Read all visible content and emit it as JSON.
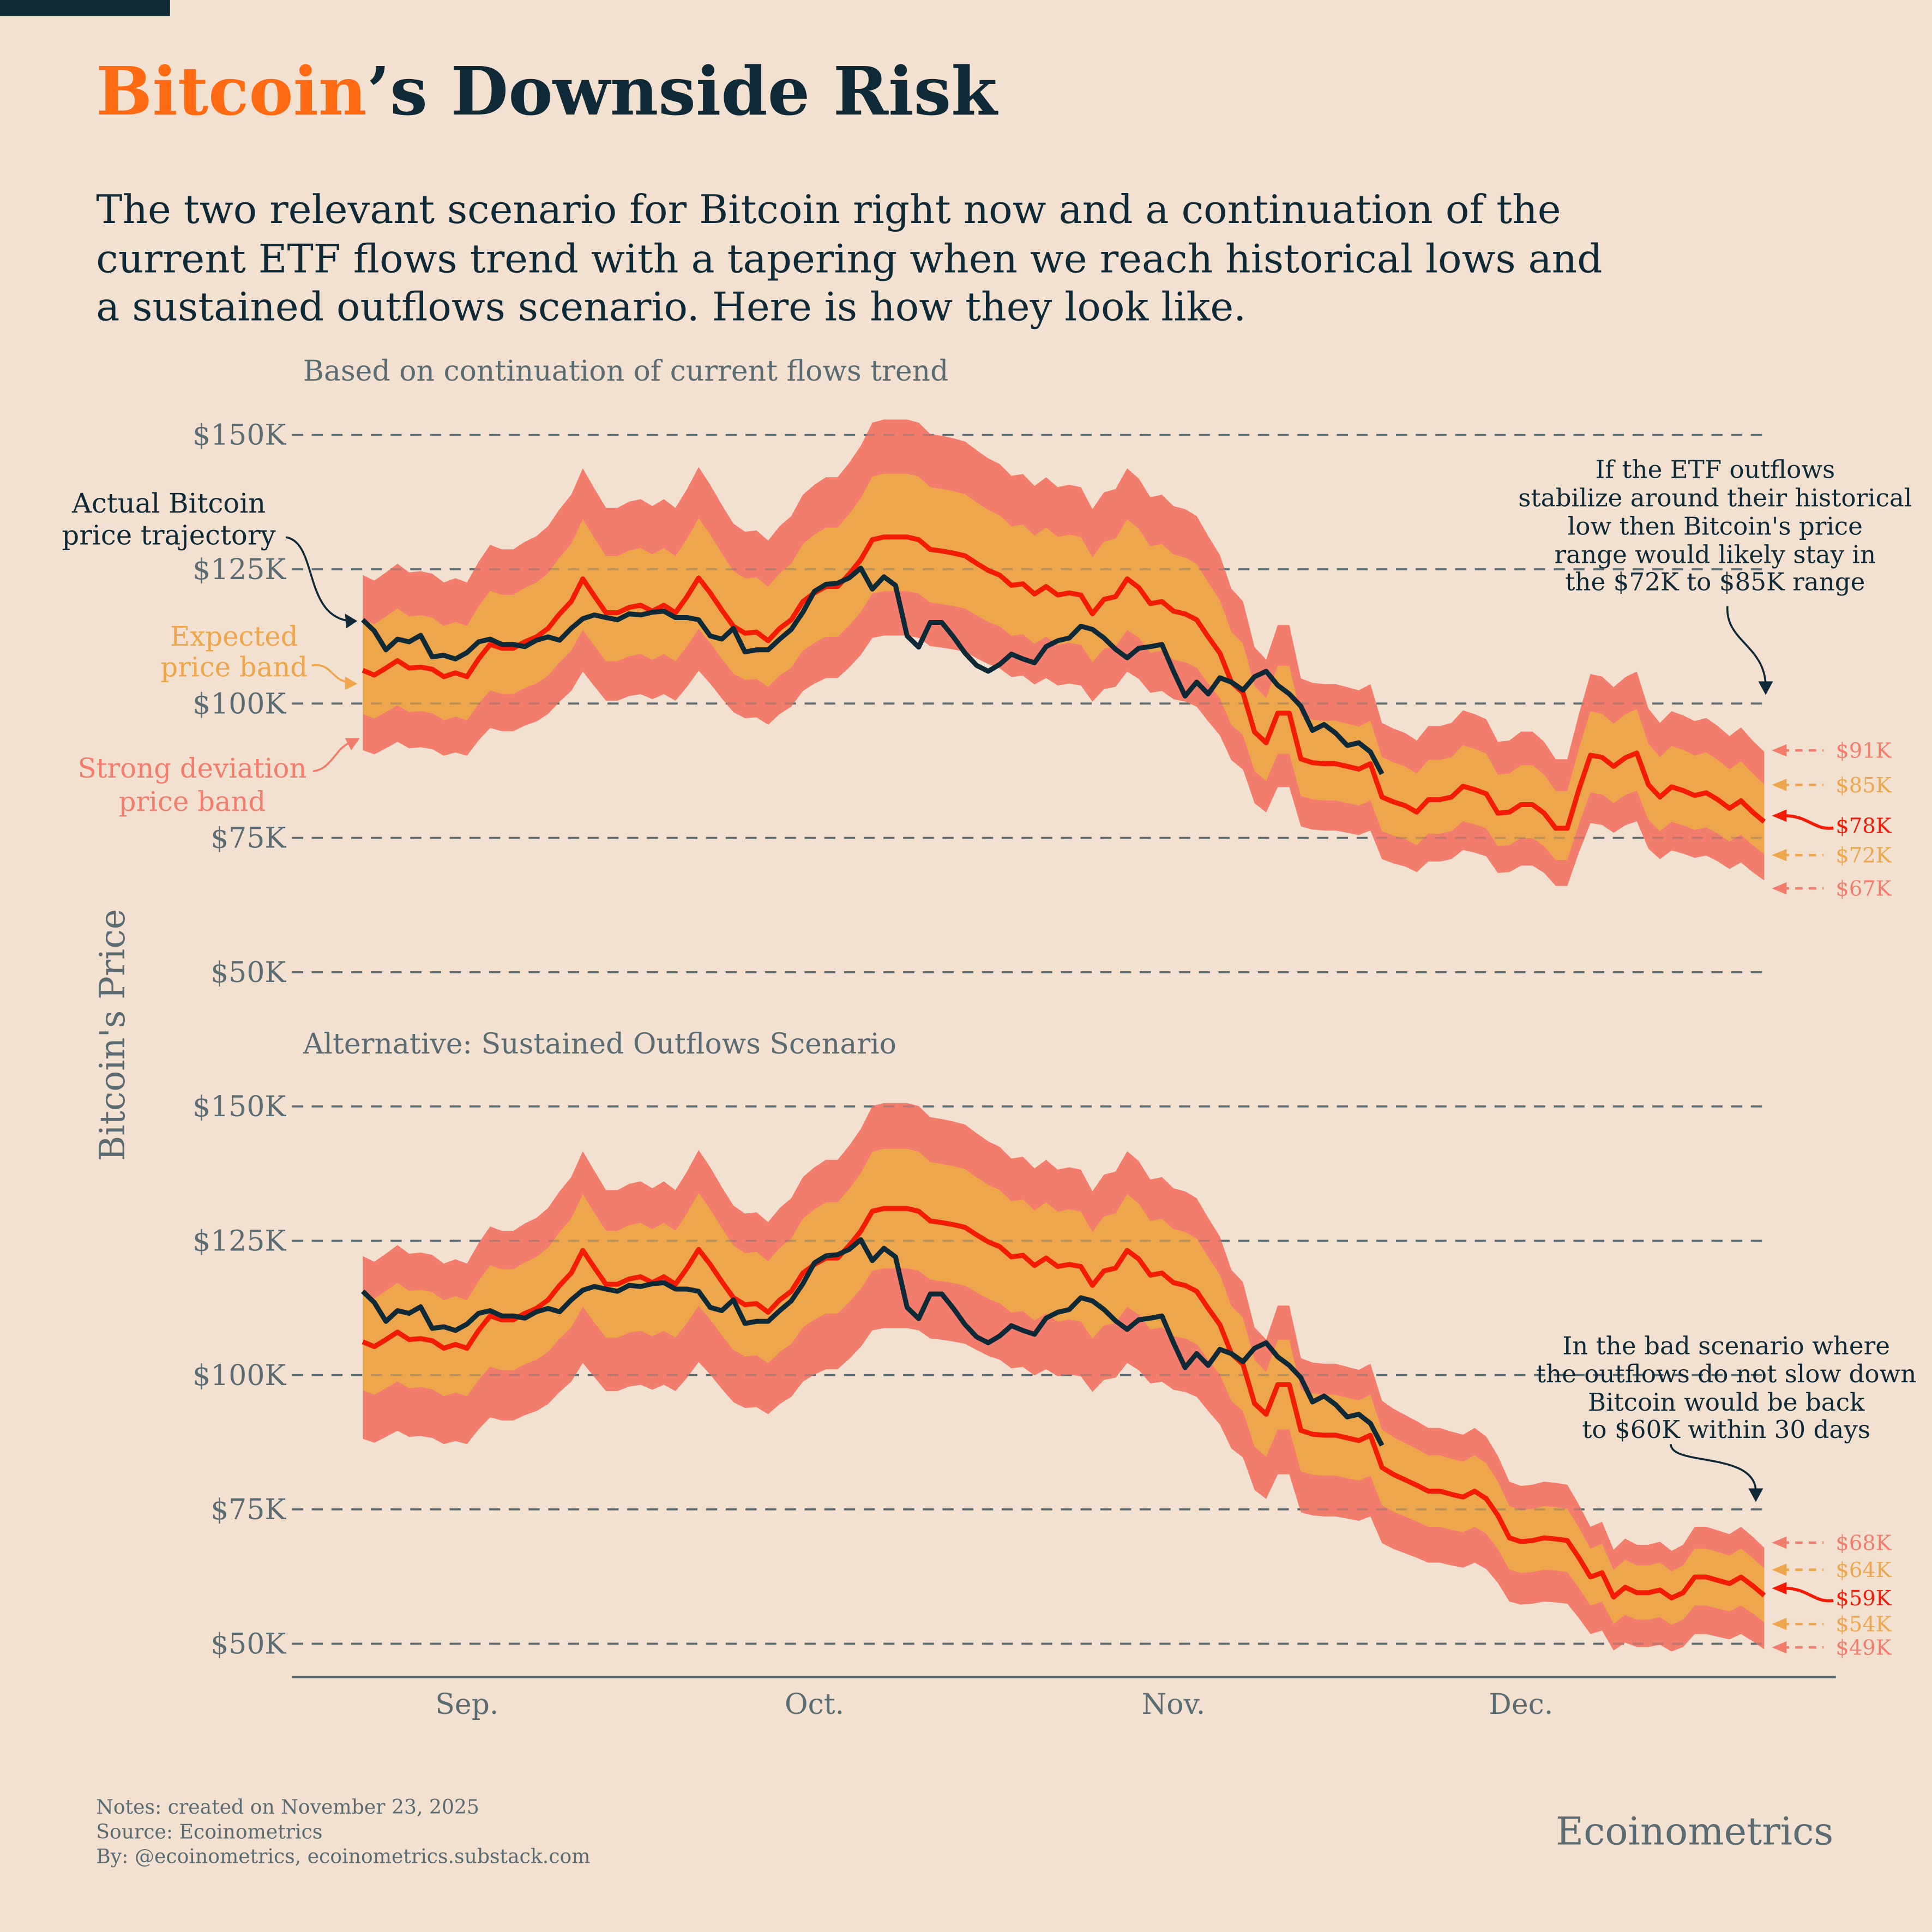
{
  "title": {
    "highlight": "Bitcoin",
    "rest": "’s Downside Risk"
  },
  "subtitle": [
    "The two relevant scenario for Bitcoin right now and a continuation of the",
    "current ETF flows trend with a tapering when we reach historical lows and",
    "a sustained outflows scenario. Here is how they look like."
  ],
  "colors": {
    "background": "#f2e0d0",
    "actual": "#0f2a36",
    "expected_line": "#f21c06",
    "expected_band": "#eea64c",
    "strong_band": "#f27d6d",
    "title_accent": "#ff6a13"
  },
  "y_axis_label": "Bitcoin's Price",
  "x_ticks": [
    "Sep.",
    "Oct.",
    "Nov.",
    "Dec."
  ],
  "annotations": {
    "actual": [
      "Actual Bitcoin",
      "price trajectory"
    ],
    "expected": [
      "Expected",
      "price band"
    ],
    "strong": [
      "Strong deviation",
      "price band"
    ],
    "top_note": [
      "If the ETF outflows",
      "stabilize around their historical",
      "low then Bitcoin's price",
      "range would likely stay in",
      "the $72K to $85K range"
    ],
    "bottom_note": [
      "In the bad scenario where",
      "the outflows do not slow down",
      "Bitcoin would be back",
      "to $60K within 30 days"
    ]
  },
  "footer": {
    "notes": "Notes: created on November 23, 2025",
    "source": "Source: Ecoinometrics",
    "by": "By: @ecoinometrics, ecoinometrics.substack.com",
    "brand": "Ecoinometrics"
  },
  "chart_data": [
    {
      "type": "area",
      "title": "Based on continuation of current flows trend",
      "ylabel": "Bitcoin's Price",
      "ylim": [
        50000,
        150000
      ],
      "y_ticks": [
        "$150K",
        "$125K",
        "$100K",
        "$75K",
        "$50K"
      ],
      "y_tick_values": [
        150,
        125,
        100,
        75,
        50
      ],
      "grid": "horizontal dashed",
      "end_labels": {
        "strong_high": "$91K",
        "expected_high": "$85K",
        "expected": "$78K",
        "expected_low": "$72K",
        "strong_low": "$67K"
      },
      "series": {
        "expected_center_k": [
          106.2,
          105.3,
          106.6,
          108,
          106.6,
          106.8,
          106.4,
          105,
          105.7,
          105,
          108.3,
          111,
          110.3,
          110.3,
          111.5,
          112.4,
          114,
          116.7,
          119,
          123.2,
          120,
          116.9,
          116.9,
          117.9,
          118.3,
          117.2,
          118.3,
          116.9,
          119.9,
          123.4,
          120.6,
          117.4,
          114.4,
          113.1,
          113.3,
          111.7,
          114,
          115.6,
          119,
          120.6,
          121.8,
          121.8,
          124.1,
          126.8,
          130.5,
          131,
          131,
          131,
          130.5,
          128.7,
          128.4,
          128,
          127.5,
          126.1,
          124.8,
          123.9,
          122,
          122.3,
          120.4,
          121.8,
          120.2,
          120.6,
          120.2,
          116.7,
          119.4,
          119.9,
          123.2,
          121.6,
          118.6,
          119,
          117.2,
          116.7,
          115.6,
          112.4,
          109.4,
          104,
          102,
          94.7,
          92.7,
          98.2,
          98.2,
          89.7,
          89,
          88.8,
          88.8,
          88.3,
          87.8,
          88.8,
          82.6,
          81.7,
          81,
          79.8,
          82.1,
          82.1,
          82.6,
          84.6,
          84,
          83.2,
          79.6,
          79.8,
          81.2,
          81.2,
          79.6,
          76.8,
          76.8,
          84,
          90.4,
          90,
          88.3,
          89.9,
          90.8,
          84.9,
          82.6,
          84.5,
          83.8,
          82.9,
          83.4,
          82.1,
          80.5,
          81.9,
          79.8,
          78
        ]
      }
    },
    {
      "type": "area",
      "title": "Alternative: Sustained Outflows Scenario",
      "ylabel": "Bitcoin's Price",
      "ylim": [
        50000,
        150000
      ],
      "y_ticks": [
        "$150K",
        "$125K",
        "$100K",
        "$75K",
        "$50K"
      ],
      "y_tick_values": [
        150,
        125,
        100,
        75,
        50
      ],
      "grid": "horizontal dashed",
      "end_labels": {
        "strong_high": "$68K",
        "expected_high": "$64K",
        "expected": "$59K",
        "expected_low": "$54K",
        "strong_low": "$49K"
      },
      "series": {
        "expected_center_k": [
          106.2,
          105.3,
          106.6,
          108,
          106.6,
          106.8,
          106.4,
          105,
          105.7,
          105,
          108.3,
          111,
          110.3,
          110.3,
          111.5,
          112.4,
          114,
          116.7,
          119,
          123.2,
          120,
          116.9,
          116.9,
          117.9,
          118.3,
          117.2,
          118.3,
          116.9,
          119.9,
          123.4,
          120.6,
          117.4,
          114.4,
          113.1,
          113.3,
          111.7,
          114,
          115.6,
          119,
          120.6,
          121.8,
          121.8,
          124.1,
          126.8,
          130.5,
          131,
          131,
          131,
          130.5,
          128.7,
          128.4,
          128,
          127.5,
          126.1,
          124.8,
          123.9,
          122,
          122.3,
          120.4,
          121.8,
          120.2,
          120.6,
          120.2,
          116.7,
          119.4,
          119.9,
          123.2,
          121.6,
          118.6,
          119,
          117.2,
          116.7,
          115.6,
          112.4,
          109.4,
          104,
          102,
          94.7,
          92.7,
          98.2,
          98.2,
          89.7,
          89,
          88.8,
          88.8,
          88.3,
          87.8,
          88.8,
          82.8,
          81.5,
          80.5,
          79.5,
          78.4,
          78.4,
          77.8,
          77.3,
          78.4,
          77,
          73.9,
          69.7,
          69,
          69.2,
          69.7,
          69.5,
          69.2,
          66,
          62.4,
          63.2,
          58.7,
          60.5,
          59.5,
          59.5,
          60,
          58.5,
          59.5,
          62.4,
          62.4,
          61.8,
          61.2,
          62.4,
          60.8,
          59
        ]
      }
    }
  ],
  "actual_price_k": [
    115.6,
    113.5,
    110,
    112,
    111.5,
    112.7,
    108.7,
    109,
    108.3,
    109.5,
    111.5,
    112,
    111,
    111,
    110.6,
    111.8,
    112.4,
    111.8,
    114,
    115.8,
    116.5,
    116,
    115.6,
    116.7,
    116.5,
    117,
    117.2,
    116,
    116,
    115.6,
    112.6,
    112,
    114,
    109.6,
    110,
    110,
    112,
    113.8,
    117,
    120.9,
    122.2,
    122.4,
    123.4,
    125.2,
    121.3,
    123.6,
    122,
    112.6,
    110.5,
    115.1,
    115.1,
    112.4,
    109.4,
    107.1,
    106,
    107.3,
    109.2,
    108.3,
    107.6,
    110.6,
    111.7,
    112.2,
    114.4,
    113.8,
    112.2,
    110.1,
    108.5,
    110.3,
    110.6,
    111,
    106,
    101.4,
    104,
    101.8,
    104.8,
    104,
    102.5,
    105,
    106,
    103.4,
    101.8,
    99.5,
    95,
    96.1,
    94.5,
    92.2,
    92.7,
    91,
    86.9
  ],
  "dates": [
    "2025-08-23",
    "2025-08-24",
    "2025-08-25",
    "2025-08-26",
    "2025-08-27",
    "2025-08-28",
    "2025-08-29",
    "2025-08-30",
    "2025-08-31",
    "2025-09-01",
    "2025-09-02",
    "2025-09-03",
    "2025-09-04",
    "2025-09-05",
    "2025-09-06",
    "2025-09-07",
    "2025-09-08",
    "2025-09-09",
    "2025-09-10",
    "2025-09-11",
    "2025-09-12",
    "2025-09-13",
    "2025-09-14",
    "2025-09-15",
    "2025-09-16",
    "2025-09-17",
    "2025-09-18",
    "2025-09-19",
    "2025-09-20",
    "2025-09-21",
    "2025-09-22",
    "2025-09-23",
    "2025-09-24",
    "2025-09-25",
    "2025-09-26",
    "2025-09-27",
    "2025-09-28",
    "2025-09-29",
    "2025-09-30",
    "2025-10-01",
    "2025-10-02",
    "2025-10-03",
    "2025-10-04",
    "2025-10-05",
    "2025-10-06",
    "2025-10-07",
    "2025-10-08",
    "2025-10-09",
    "2025-10-10",
    "2025-10-11",
    "2025-10-12",
    "2025-10-13",
    "2025-10-14",
    "2025-10-15",
    "2025-10-16",
    "2025-10-17",
    "2025-10-18",
    "2025-10-19",
    "2025-10-20",
    "2025-10-21",
    "2025-10-22",
    "2025-10-23",
    "2025-10-24",
    "2025-10-25",
    "2025-10-26",
    "2025-10-27",
    "2025-10-28",
    "2025-10-29",
    "2025-10-30",
    "2025-10-31",
    "2025-11-01",
    "2025-11-02",
    "2025-11-03",
    "2025-11-04",
    "2025-11-05",
    "2025-11-06",
    "2025-11-07",
    "2025-11-08",
    "2025-11-09",
    "2025-11-10",
    "2025-11-11",
    "2025-11-12",
    "2025-11-13",
    "2025-11-14",
    "2025-11-15",
    "2025-11-16",
    "2025-11-17",
    "2025-11-18",
    "2025-11-19",
    "2025-11-20",
    "2025-11-21",
    "2025-11-22",
    "2025-11-23",
    "2025-11-24",
    "2025-11-25",
    "2025-11-26",
    "2025-11-27",
    "2025-11-28",
    "2025-11-29",
    "2025-11-30",
    "2025-12-01",
    "2025-12-02",
    "2025-12-03",
    "2025-12-04",
    "2025-12-05",
    "2025-12-06",
    "2025-12-07",
    "2025-12-08",
    "2025-12-09",
    "2025-12-10",
    "2025-12-11",
    "2025-12-12",
    "2025-12-13",
    "2025-12-14",
    "2025-12-15",
    "2025-12-16",
    "2025-12-17",
    "2025-12-18",
    "2025-12-19",
    "2025-12-20",
    "2025-12-21",
    "2025-12-22"
  ]
}
